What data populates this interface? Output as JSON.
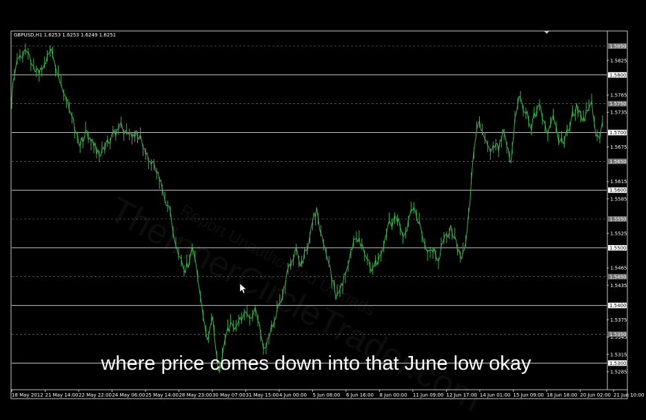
{
  "symbol_info": "GBPUSD,H1  1.6253 1.6253 1.6249 1.6251",
  "caption": "where price comes down into that June low okay",
  "watermark": {
    "line1": "Report Unauthorized Uploads",
    "line2": "TheInnerCircleTrader.com"
  },
  "colors": {
    "background": "#000000",
    "candle": "#3fb34f",
    "grid_dashed": "#707070",
    "level_line": "#c8c8c8",
    "axis_text": "#ffffff",
    "frame": "#c8c8c8"
  },
  "chart_data": {
    "type": "line",
    "ylim": [
      1.5255,
      1.5875
    ],
    "y_ticks": [
      "1.5825",
      "1.5765",
      "1.5735",
      "1.5675",
      "1.5615",
      "1.5585",
      "1.5525",
      "1.5465",
      "1.5435",
      "1.5375",
      "1.5345",
      "1.5315",
      "1.5285"
    ],
    "level_lines": [
      1.58,
      1.57,
      1.56,
      1.55,
      1.54,
      1.53
    ],
    "dashed_levels": [
      1.585,
      1.575,
      1.565,
      1.555,
      1.545,
      1.535
    ],
    "level_labels": [
      "1.5850",
      "1.5800",
      "1.5750",
      "1.5700",
      "1.5650",
      "1.5600",
      "1.5550",
      "1.5500",
      "1.5450",
      "1.5400",
      "1.5350",
      "1.5300"
    ],
    "x_ticks": [
      "18 May 2012",
      "21 May 14:00",
      "22 May 22:00",
      "24 May 06:00",
      "25 May 14:00",
      "28 May 23:00",
      "30 May 07:00",
      "31 May 15:00",
      "4 Jun 00:00",
      "5 Jun 08:00",
      "6 Jun 16:00",
      "8 Jun 00:00",
      "11 Jun 09:00",
      "12 Jun 17:00",
      "14 Jun 01:00",
      "15 Jun 09:00",
      "18 Jun 18:00",
      "20 Jun 02:00",
      "21 Jun 10:00"
    ],
    "series": [
      {
        "values": [
          [
            0,
            1.5765
          ],
          [
            4,
            1.58
          ],
          [
            8,
            1.583
          ],
          [
            14,
            1.5825
          ],
          [
            20,
            1.584
          ],
          [
            26,
            1.5835
          ],
          [
            34,
            1.581
          ],
          [
            40,
            1.58
          ],
          [
            46,
            1.5815
          ],
          [
            52,
            1.583
          ],
          [
            58,
            1.5848
          ],
          [
            64,
            1.582
          ],
          [
            70,
            1.579
          ],
          [
            78,
            1.577
          ],
          [
            84,
            1.5745
          ],
          [
            90,
            1.572
          ],
          [
            96,
            1.569
          ],
          [
            100,
            1.568
          ],
          [
            108,
            1.57
          ],
          [
            116,
            1.5685
          ],
          [
            124,
            1.567
          ],
          [
            130,
            1.566
          ],
          [
            136,
            1.5675
          ],
          [
            144,
            1.569
          ],
          [
            152,
            1.57
          ],
          [
            160,
            1.571
          ],
          [
            166,
            1.57
          ],
          [
            172,
            1.5695
          ],
          [
            178,
            1.569
          ],
          [
            184,
            1.57
          ],
          [
            190,
            1.5685
          ],
          [
            196,
            1.5665
          ],
          [
            202,
            1.565
          ],
          [
            208,
            1.564
          ],
          [
            214,
            1.563
          ],
          [
            220,
            1.56
          ],
          [
            226,
            1.558
          ],
          [
            232,
            1.556
          ],
          [
            236,
            1.553
          ],
          [
            240,
            1.55
          ],
          [
            246,
            1.548
          ],
          [
            252,
            1.546
          ],
          [
            258,
            1.547
          ],
          [
            262,
            1.549
          ],
          [
            266,
            1.55
          ],
          [
            270,
            1.547
          ],
          [
            274,
            1.543
          ],
          [
            278,
            1.54
          ],
          [
            282,
            1.537
          ],
          [
            286,
            1.534
          ],
          [
            290,
            1.536
          ],
          [
            294,
            1.538
          ],
          [
            298,
            1.533
          ],
          [
            302,
            1.528
          ],
          [
            306,
            1.53
          ],
          [
            310,
            1.533
          ],
          [
            314,
            1.535
          ],
          [
            320,
            1.5365
          ],
          [
            326,
            1.5355
          ],
          [
            332,
            1.537
          ],
          [
            338,
            1.538
          ],
          [
            344,
            1.5385
          ],
          [
            350,
            1.5375
          ],
          [
            356,
            1.539
          ],
          [
            362,
            1.537
          ],
          [
            366,
            1.534
          ],
          [
            370,
            1.532
          ],
          [
            376,
            1.5345
          ],
          [
            382,
            1.537
          ],
          [
            388,
            1.539
          ],
          [
            394,
            1.541
          ],
          [
            400,
            1.544
          ],
          [
            404,
            1.5465
          ],
          [
            410,
            1.548
          ],
          [
            416,
            1.5495
          ],
          [
            422,
            1.547
          ],
          [
            428,
            1.5485
          ],
          [
            432,
            1.55
          ],
          [
            436,
            1.552
          ],
          [
            440,
            1.555
          ],
          [
            446,
            1.5565
          ],
          [
            450,
            1.553
          ],
          [
            456,
            1.551
          ],
          [
            462,
            1.548
          ],
          [
            466,
            1.546
          ],
          [
            470,
            1.544
          ],
          [
            474,
            1.541
          ],
          [
            480,
            1.5425
          ],
          [
            486,
            1.545
          ],
          [
            492,
            1.547
          ],
          [
            498,
            1.55
          ],
          [
            504,
            1.552
          ],
          [
            508,
            1.551
          ],
          [
            514,
            1.5495
          ],
          [
            520,
            1.548
          ],
          [
            526,
            1.546
          ],
          [
            530,
            1.547
          ],
          [
            536,
            1.548
          ],
          [
            540,
            1.549
          ],
          [
            546,
            1.552
          ],
          [
            552,
            1.554
          ],
          [
            558,
            1.5545
          ],
          [
            562,
            1.5555
          ],
          [
            568,
            1.554
          ],
          [
            574,
            1.552
          ],
          [
            578,
            1.5535
          ],
          [
            584,
            1.557
          ],
          [
            590,
            1.556
          ],
          [
            596,
            1.554
          ],
          [
            600,
            1.552
          ],
          [
            606,
            1.55
          ],
          [
            612,
            1.549
          ],
          [
            618,
            1.55
          ],
          [
            624,
            1.548
          ],
          [
            630,
            1.5505
          ],
          [
            636,
            1.552
          ],
          [
            642,
            1.5535
          ],
          [
            646,
            1.552
          ],
          [
            650,
            1.551
          ],
          [
            654,
            1.549
          ],
          [
            658,
            1.5475
          ],
          [
            662,
            1.55
          ],
          [
            666,
            1.553
          ],
          [
            670,
            1.558
          ],
          [
            674,
            1.564
          ],
          [
            678,
            1.569
          ],
          [
            682,
            1.572
          ],
          [
            688,
            1.5705
          ],
          [
            694,
            1.568
          ],
          [
            700,
            1.566
          ],
          [
            706,
            1.568
          ],
          [
            712,
            1.567
          ],
          [
            718,
            1.57
          ],
          [
            724,
            1.568
          ],
          [
            730,
            1.565
          ],
          [
            736,
            1.572
          ],
          [
            742,
            1.576
          ],
          [
            748,
            1.574
          ],
          [
            754,
            1.573
          ],
          [
            760,
            1.571
          ],
          [
            766,
            1.5735
          ],
          [
            772,
            1.575
          ],
          [
            778,
            1.572
          ],
          [
            784,
            1.57
          ],
          [
            790,
            1.573
          ],
          [
            796,
            1.571
          ],
          [
            800,
            1.569
          ],
          [
            806,
            1.568
          ],
          [
            810,
            1.5695
          ],
          [
            816,
            1.571
          ],
          [
            820,
            1.573
          ],
          [
            826,
            1.5745
          ],
          [
            830,
            1.5735
          ],
          [
            836,
            1.572
          ],
          [
            842,
            1.574
          ],
          [
            848,
            1.5755
          ],
          [
            854,
            1.57
          ],
          [
            860,
            1.569
          ],
          [
            864,
            1.572
          ]
        ]
      }
    ]
  }
}
